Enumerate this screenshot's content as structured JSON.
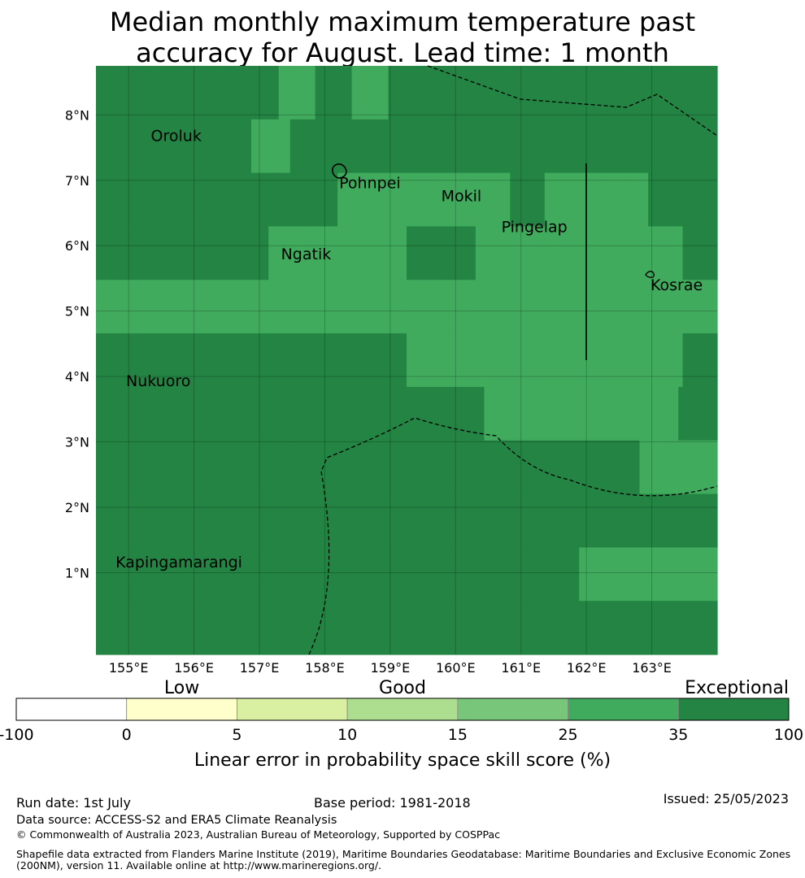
{
  "title": {
    "line1": "Median monthly maximum temperature past",
    "line2": "accuracy for August. Lead time: 1 month"
  },
  "map": {
    "lon_range": [
      154.5,
      164.0
    ],
    "lat_range": [
      -0.25,
      8.75
    ],
    "lon_ticks": [
      155,
      156,
      157,
      158,
      159,
      160,
      161,
      162,
      163
    ],
    "lat_ticks": [
      1,
      2,
      3,
      4,
      5,
      6,
      7,
      8
    ],
    "lon_tick_labels": [
      "155°E",
      "156°E",
      "157°E",
      "158°E",
      "159°E",
      "160°E",
      "161°E",
      "162°E",
      "163°E"
    ],
    "lat_tick_labels": [
      "1°N",
      "2°N",
      "3°N",
      "4°N",
      "5°N",
      "6°N",
      "7°N",
      "8°N"
    ],
    "cell_size_deg": 0.833,
    "grid_category_rows_north_to_south": [
      "55555454555555555",
      "5555455555555555",
      "555555544444544455",
      "555554444554444445",
      "4444444444444444444",
      "555555555444444445",
      "5555555555444445",
      "5555555555555544",
      "555555555555555",
      "555555555555554444",
      "55555555555"
    ],
    "places": [
      {
        "name": "Oroluk",
        "lon": 155.34,
        "lat": 7.6
      },
      {
        "name": "Pohnpei",
        "lon": 158.22,
        "lat": 6.88
      },
      {
        "name": "Mokil",
        "lon": 159.78,
        "lat": 6.68
      },
      {
        "name": "Pingelap",
        "lon": 160.7,
        "lat": 6.21
      },
      {
        "name": "Ngatik",
        "lon": 157.33,
        "lat": 5.79
      },
      {
        "name": "Kosrae",
        "lon": 162.98,
        "lat": 5.32
      },
      {
        "name": "Nukuoro",
        "lon": 154.96,
        "lat": 3.85
      },
      {
        "name": "Kapingamarangi",
        "lon": 154.8,
        "lat": 1.08
      }
    ]
  },
  "legend": {
    "category_labels": [
      "Low",
      "Good",
      "Exceptional"
    ],
    "tick_labels": [
      "-100",
      "0",
      "5",
      "10",
      "15",
      "25",
      "35",
      "100"
    ],
    "colors": [
      "#ffffff",
      "#ffffcc",
      "#d9f0a3",
      "#addd8e",
      "#78c679",
      "#41ab5d",
      "#238443"
    ],
    "xlabel": "Linear error in probability space skill score (%)"
  },
  "footer": {
    "run_date": "Run date: 1st July",
    "base_period": "Base period: 1981-2018",
    "issued": "Issued: 25/05/2023",
    "data_source": "Data source: ACCESS-S2 and ERA5 Climate Reanalysis",
    "copyright": "© Commonwealth of Australia 2023, Australian Bureau of Meteorology, Supported by COSPPac",
    "shapefile_line1": "Shapefile data extracted from Flanders Marine Institute (2019), Maritime Boundaries Geodatabase: Maritime Boundaries and Exclusive Economic Zones",
    "shapefile_line2": "(200NM), version 11. Available online at http://www.marineregions.org/."
  }
}
